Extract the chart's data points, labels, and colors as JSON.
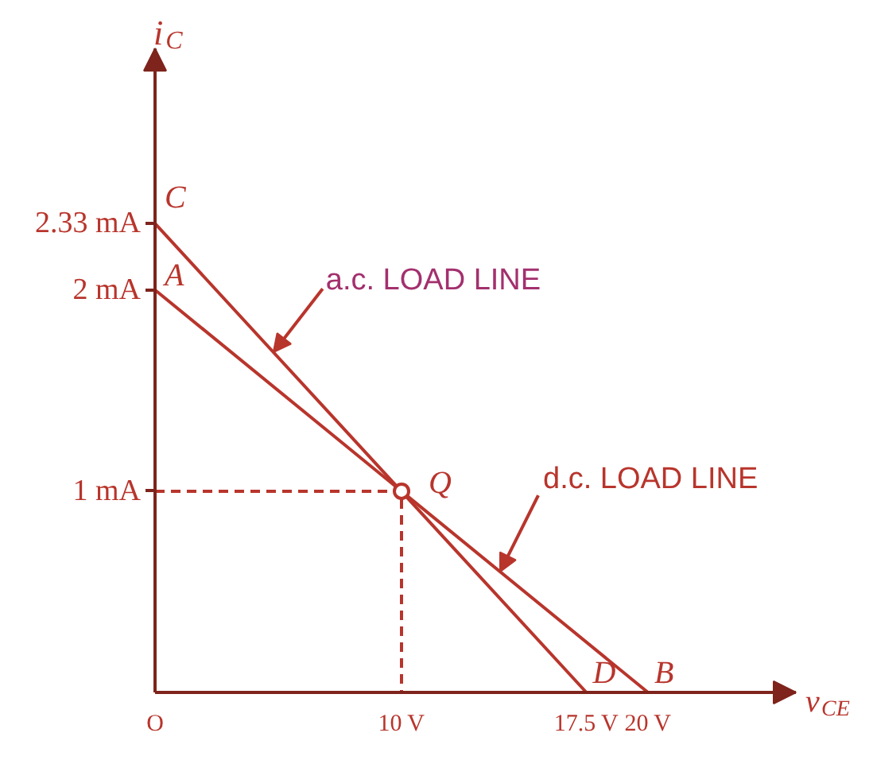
{
  "chart_data": {
    "type": "line",
    "xlabel": "v$_{CE}$",
    "ylabel": "i$_{C}$",
    "xlim": [
      0,
      26
    ],
    "ylim": [
      0,
      3.2
    ],
    "xticks": [
      {
        "value": 0,
        "label": "O"
      },
      {
        "value": 10,
        "label": "10 V"
      },
      {
        "value": 17.5,
        "label": "17.5 V"
      },
      {
        "value": 20,
        "label": "20 V"
      }
    ],
    "yticks": [
      {
        "value": 1,
        "label": "1 mA"
      },
      {
        "value": 2,
        "label": "2 mA"
      },
      {
        "value": 2.33,
        "label": "2.33 mA"
      }
    ],
    "series": [
      {
        "color": "#b8352c",
        "x": [
          0,
          17.5
        ],
        "values": [
          2.33,
          0
        ]
      },
      {
        "color": "#b8352c",
        "x": [
          0,
          20
        ],
        "values": [
          2,
          0
        ]
      },
      {
        "color": "#b8352c",
        "x": [
          0,
          10,
          10
        ],
        "values": [
          1,
          1,
          0
        ],
        "line_style": "dashed"
      },
      {
        "type": "scatter",
        "color": "#b8352c",
        "x": [
          10
        ],
        "values": [
          1
        ],
        "marker": "circle"
      }
    ],
    "annotations": [
      {
        "text": "C",
        "x": 0,
        "y": 2.33
      },
      {
        "text": "A",
        "x": 0,
        "y": 2
      },
      {
        "text": "a.c. LOAD LINE",
        "x": 4.8,
        "y": 1.69
      },
      {
        "text": "Q",
        "x": 10,
        "y": 1
      },
      {
        "text": "d.c. LOAD LINE",
        "x": 14,
        "y": 0.6
      },
      {
        "text": "D",
        "x": 17.5,
        "y": 0
      },
      {
        "text": "B",
        "x": 20,
        "y": 0
      }
    ]
  }
}
